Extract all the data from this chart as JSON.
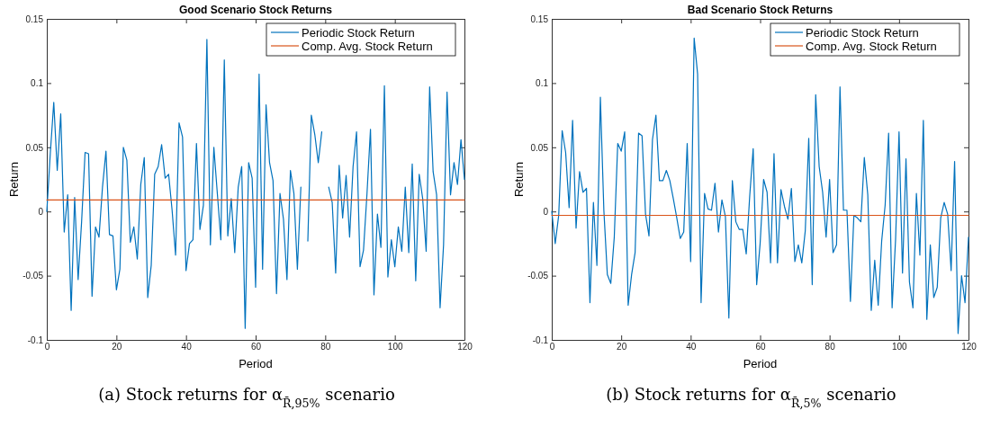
{
  "chart_data": [
    {
      "type": "line",
      "title": "Good Scenario Stock Returns",
      "xlabel": "Period",
      "ylabel": "Return",
      "xlim": [
        0,
        120
      ],
      "xticks": [
        0,
        20,
        40,
        60,
        80,
        100,
        120
      ],
      "ylim": [
        -0.1,
        0.15
      ],
      "yticks": [
        -0.1,
        -0.05,
        0,
        0.05,
        0.1,
        0.15
      ],
      "legend": "top right",
      "annotations": [
        "(a) Stock returns for α$_{R̄,95%}$ scenario"
      ],
      "series": [
        {
          "name": "Periodic Stock Return",
          "color": "#0072bd",
          "x": [
            0,
            1,
            2,
            3,
            4,
            5,
            6,
            7,
            8,
            9,
            10,
            11,
            12,
            13,
            14,
            15,
            16,
            17,
            18,
            19,
            20,
            21,
            22,
            23,
            24,
            25,
            26,
            27,
            28,
            29,
            30,
            31,
            32,
            33,
            34,
            35,
            36,
            37,
            38,
            39,
            40,
            41,
            42,
            43,
            44,
            45,
            46,
            47,
            48,
            49,
            50,
            51,
            52,
            53,
            54,
            55,
            56,
            57,
            58,
            59,
            60,
            61,
            62,
            63,
            64,
            65,
            66,
            67,
            68,
            69,
            70,
            71,
            72,
            73,
            74,
            75,
            76,
            77,
            78,
            79,
            80,
            81,
            82,
            83,
            84,
            85,
            86,
            87,
            88,
            89,
            90,
            91,
            92,
            93,
            94,
            95,
            96,
            97,
            98,
            99,
            100,
            101,
            102,
            103,
            104,
            105,
            106,
            107,
            108,
            109,
            110,
            111,
            112,
            113,
            114,
            115,
            116,
            117,
            118,
            119,
            120
          ],
          "values": [
            0.0,
            0.045,
            0.085,
            0.032,
            0.076,
            -0.016,
            0.013,
            -0.077,
            0.011,
            -0.053,
            -0.008,
            0.046,
            0.045,
            -0.066,
            -0.012,
            -0.02,
            0.019,
            0.047,
            -0.018,
            -0.019,
            -0.061,
            -0.045,
            0.05,
            0.04,
            -0.024,
            -0.012,
            -0.037,
            0.021,
            0.042,
            -0.067,
            -0.042,
            0.029,
            0.035,
            0.052,
            0.026,
            0.029,
            0.001,
            -0.034,
            0.069,
            0.058,
            -0.046,
            -0.025,
            -0.022,
            0.053,
            -0.014,
            0.005,
            0.134,
            -0.026,
            0.05,
            0.014,
            -0.022,
            0.118,
            -0.019,
            0.01,
            -0.032,
            0.019,
            0.035,
            -0.091,
            0.038,
            0.026,
            -0.059,
            0.107,
            -0.045,
            0.083,
            0.038,
            0.024,
            -0.064,
            0.014,
            -0.006,
            -0.053,
            0.032,
            0.014,
            -0.045,
            0.019,
            null,
            -0.023,
            0.075,
            0.06,
            0.038,
            0.062,
            null,
            0.019,
            0.007,
            -0.048,
            0.036,
            -0.005,
            0.028,
            -0.02,
            0.035,
            0.062,
            -0.043,
            -0.03,
            0.014,
            0.064,
            -0.065,
            -0.002,
            -0.028,
            0.098,
            -0.051,
            -0.022,
            -0.043,
            -0.012,
            -0.031,
            0.019,
            -0.032,
            0.037,
            -0.054,
            0.029,
            0.01,
            -0.031,
            0.097,
            0.031,
            0.013,
            -0.075,
            -0.026,
            0.093,
            0.013,
            0.038,
            0.021,
            0.056,
            0.025
          ]
        },
        {
          "name": "Comp. Avg. Stock Return",
          "color": "#d95319",
          "x": [
            0,
            120
          ],
          "values": [
            0.009,
            0.009
          ]
        }
      ]
    },
    {
      "type": "line",
      "title": "Bad Scenario Stock Returns",
      "xlabel": "Period",
      "ylabel": "Return",
      "xlim": [
        0,
        120
      ],
      "xticks": [
        0,
        20,
        40,
        60,
        80,
        100,
        120
      ],
      "ylim": [
        -0.1,
        0.15
      ],
      "yticks": [
        -0.1,
        -0.05,
        0,
        0.05,
        0.1,
        0.15
      ],
      "legend": "top right",
      "annotations": [
        "(b) Stock returns for α$_{R̄,5%}$ scenario"
      ],
      "series": [
        {
          "name": "Periodic Stock Return",
          "color": "#0072bd",
          "x": [
            0,
            1,
            2,
            3,
            4,
            5,
            6,
            7,
            8,
            9,
            10,
            11,
            12,
            13,
            14,
            15,
            16,
            17,
            18,
            19,
            20,
            21,
            22,
            23,
            24,
            25,
            26,
            27,
            28,
            29,
            30,
            31,
            32,
            33,
            34,
            35,
            36,
            37,
            38,
            39,
            40,
            41,
            42,
            43,
            44,
            45,
            46,
            47,
            48,
            49,
            50,
            51,
            52,
            53,
            54,
            55,
            56,
            57,
            58,
            59,
            60,
            61,
            62,
            63,
            64,
            65,
            66,
            67,
            68,
            69,
            70,
            71,
            72,
            73,
            74,
            75,
            76,
            77,
            78,
            79,
            80,
            81,
            82,
            83,
            84,
            85,
            86,
            87,
            88,
            89,
            90,
            91,
            92,
            93,
            94,
            95,
            96,
            97,
            98,
            99,
            100,
            101,
            102,
            103,
            104,
            105,
            106,
            107,
            108,
            109,
            110,
            111,
            112,
            113,
            114,
            115,
            116,
            117,
            118,
            119,
            120
          ],
          "values": [
            0.0,
            -0.025,
            -0.003,
            0.063,
            0.046,
            0.003,
            0.071,
            -0.013,
            0.031,
            0.015,
            0.018,
            -0.071,
            0.007,
            -0.042,
            0.089,
            0.001,
            -0.049,
            -0.056,
            -0.02,
            0.053,
            0.047,
            0.062,
            -0.073,
            -0.049,
            -0.032,
            0.061,
            0.059,
            -0.002,
            -0.019,
            0.056,
            0.075,
            0.024,
            0.024,
            0.032,
            0.024,
            0.01,
            -0.005,
            -0.021,
            -0.016,
            0.053,
            -0.039,
            0.135,
            0.107,
            -0.071,
            0.014,
            0.002,
            0.001,
            0.022,
            -0.016,
            0.009,
            -0.004,
            -0.083,
            0.024,
            -0.008,
            -0.014,
            -0.014,
            -0.033,
            0.012,
            0.049,
            -0.057,
            -0.025,
            0.025,
            0.015,
            -0.04,
            0.045,
            -0.04,
            0.017,
            0.004,
            -0.006,
            0.018,
            -0.039,
            -0.026,
            -0.04,
            -0.015,
            0.057,
            -0.057,
            0.091,
            0.035,
            0.015,
            -0.02,
            0.025,
            -0.032,
            -0.026,
            0.097,
            0.001,
            0.001,
            -0.07,
            -0.003,
            -0.005,
            -0.008,
            0.042,
            0.013,
            -0.077,
            -0.038,
            -0.073,
            -0.023,
            0.005,
            0.061,
            -0.075,
            -0.022,
            0.062,
            -0.048,
            0.041,
            -0.055,
            -0.075,
            0.014,
            -0.034,
            0.071,
            -0.084,
            -0.026,
            -0.067,
            -0.059,
            -0.005,
            0.007,
            -0.002,
            -0.046,
            0.039,
            -0.095,
            -0.05,
            -0.071,
            -0.02
          ]
        },
        {
          "name": "Comp. Avg. Stock Return",
          "color": "#d95319",
          "x": [
            0,
            120
          ],
          "values": [
            -0.003,
            -0.003
          ]
        }
      ]
    }
  ]
}
